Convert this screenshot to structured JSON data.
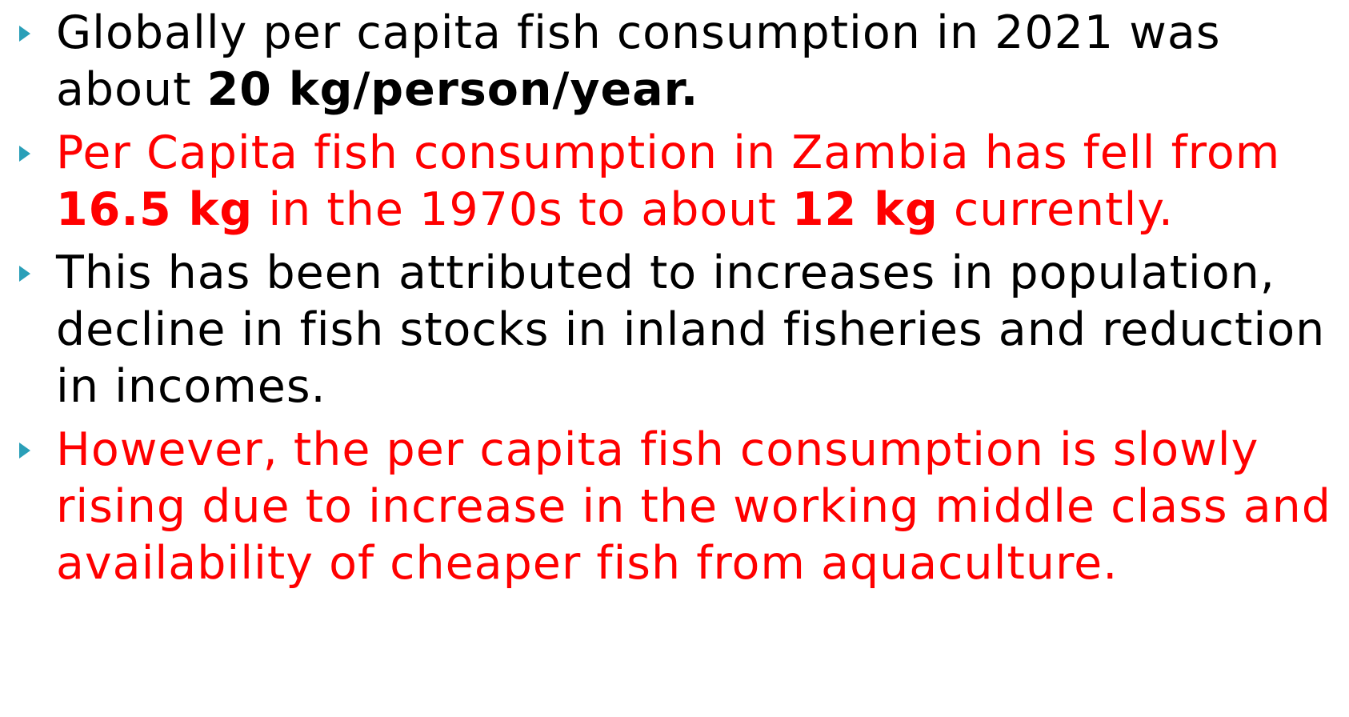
{
  "bullets": [
    {
      "color": "#000000",
      "runs": [
        {
          "text": "Globally per capita fish consumption in 2021 was about ",
          "bold": false
        },
        {
          "text": "20 kg/person/year.",
          "bold": true
        }
      ]
    },
    {
      "color": "#ff0000",
      "runs": [
        {
          "text": "Per Capita fish consumption in Zambia has fell from ",
          "bold": false
        },
        {
          "text": "16.5 kg",
          "bold": true
        },
        {
          "text": " in the 1970s to about ",
          "bold": false
        },
        {
          "text": "12 kg",
          "bold": true
        },
        {
          "text": " currently.",
          "bold": false
        }
      ]
    },
    {
      "color": "#000000",
      "runs": [
        {
          "text": "This has been attributed to increases in population, decline in fish stocks in inland fisheries and reduction in incomes.",
          "bold": false
        }
      ]
    },
    {
      "color": "#ff0000",
      "runs": [
        {
          "text": "However, the per capita fish consumption is slowly rising due to increase in the working middle class and availability of cheaper fish from aquaculture.",
          "bold": false
        }
      ]
    }
  ]
}
